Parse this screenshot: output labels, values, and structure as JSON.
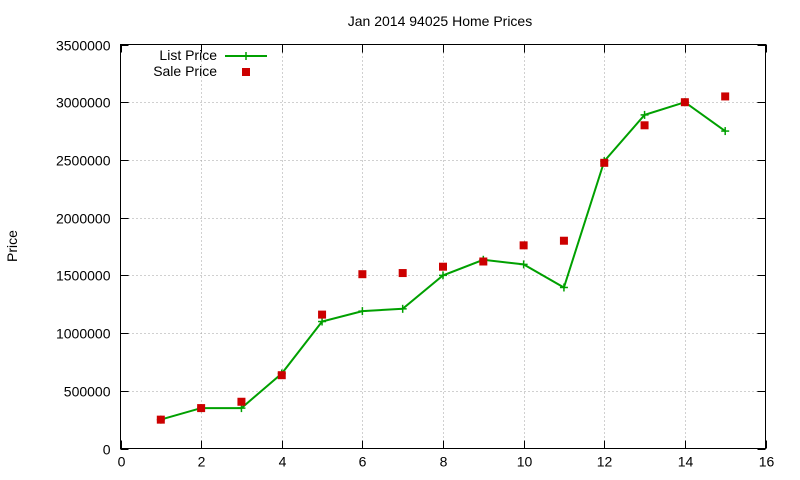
{
  "chart_data": {
    "type": "line",
    "title": "Jan 2014 94025 Home Prices",
    "xlabel": "",
    "ylabel": "Price",
    "xlim": [
      0,
      16
    ],
    "ylim": [
      0,
      3500000
    ],
    "xticks": [
      "0",
      "2",
      "4",
      "6",
      "8",
      "10",
      "12",
      "14",
      "16"
    ],
    "yticks": [
      "0",
      "500000",
      "1000000",
      "1500000",
      "2000000",
      "2500000",
      "3000000",
      "3500000"
    ],
    "grid": true,
    "legend_position": "top-left",
    "series": [
      {
        "name": "List Price",
        "style": "line-with-plus-markers",
        "color": "#00a000",
        "x": [
          1,
          2,
          3,
          4,
          5,
          6,
          7,
          8,
          9,
          10,
          11,
          12,
          13,
          14,
          15
        ],
        "y": [
          250000,
          350000,
          350000,
          650000,
          1100000,
          1190000,
          1210000,
          1500000,
          1635000,
          1595000,
          1395000,
          2490000,
          2890000,
          3000000,
          2750000
        ]
      },
      {
        "name": "Sale Price",
        "style": "square-markers",
        "color": "#cc0000",
        "x": [
          1,
          2,
          3,
          4,
          5,
          6,
          7,
          8,
          9,
          10,
          11,
          12,
          13,
          14,
          15
        ],
        "y": [
          250000,
          350000,
          405000,
          635000,
          1160000,
          1510000,
          1520000,
          1575000,
          1620000,
          1760000,
          1800000,
          2475000,
          2800000,
          3000000,
          3050000
        ]
      }
    ]
  }
}
